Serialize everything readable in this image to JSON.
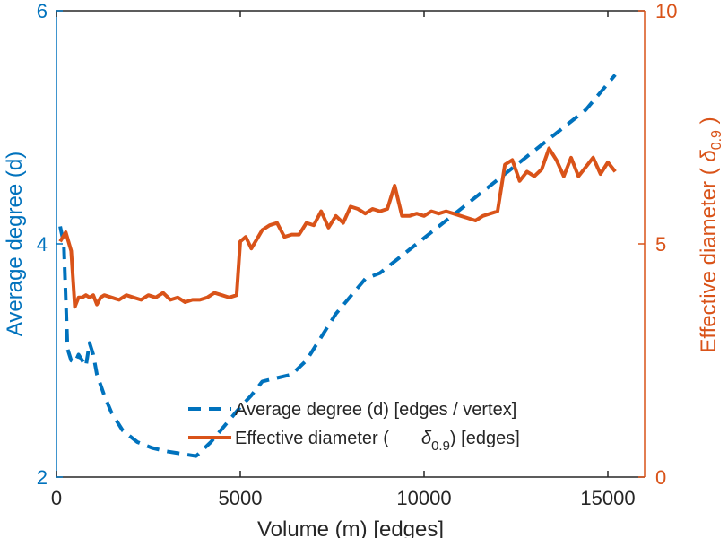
{
  "colors": {
    "left_axis": "#0072BD",
    "right_axis": "#D95319",
    "degree_series": "#0072BD",
    "diameter_series": "#D95319",
    "frame": "#262626"
  },
  "chart_data": {
    "type": "line",
    "title": "",
    "xlabel": "Volume (m) [edges]",
    "ylabel_left": "Average degree (d)",
    "ylabel_right_prefix": "Effective diameter (",
    "ylabel_right_symbol": "δ",
    "ylabel_right_subscript": "0.9",
    "ylabel_right_suffix": ")",
    "xlim": [
      0,
      16000
    ],
    "ylim_left": [
      2,
      6
    ],
    "ylim_right": [
      0,
      10
    ],
    "x_ticks": [
      0,
      5000,
      10000,
      15000
    ],
    "x_tick_labels": [
      "0",
      "5000",
      "10000",
      "15000"
    ],
    "y_left_ticks": [
      2,
      4,
      6
    ],
    "y_left_tick_labels": [
      "2",
      "4",
      "6"
    ],
    "y_right_ticks": [
      0,
      5,
      10
    ],
    "y_right_tick_labels": [
      "0",
      "5",
      "10"
    ],
    "legend": {
      "position": "bottom-center",
      "entries": [
        {
          "label": "Average degree (d) [edges / vertex]",
          "style": "dashed",
          "series": "degree"
        },
        {
          "label_prefix": "Effective diameter (",
          "label_symbol": "δ",
          "label_subscript": "0.9",
          "label_suffix": ") [edges]",
          "style": "solid",
          "series": "diameter"
        }
      ]
    },
    "series": [
      {
        "name": "Average degree (d) [edges / vertex]",
        "axis": "left",
        "style": "dashed",
        "x": [
          100,
          200,
          300,
          400,
          500,
          600,
          700,
          800,
          900,
          1000,
          1100,
          1300,
          1500,
          1800,
          2200,
          2600,
          3000,
          3400,
          3800,
          4200,
          4600,
          5000,
          5300,
          5600,
          6000,
          6400,
          6800,
          7200,
          7600,
          8000,
          8400,
          8800,
          9200,
          9600,
          10000,
          10400,
          10800,
          11200,
          11600,
          12000,
          12400,
          12800,
          13200,
          13600,
          14000,
          14400,
          14800,
          15200
        ],
        "y": [
          4.15,
          4.0,
          3.1,
          3.0,
          2.98,
          3.05,
          3.0,
          2.95,
          3.15,
          3.05,
          2.88,
          2.7,
          2.55,
          2.4,
          2.3,
          2.25,
          2.22,
          2.2,
          2.18,
          2.3,
          2.45,
          2.6,
          2.7,
          2.82,
          2.85,
          2.88,
          3.0,
          3.2,
          3.4,
          3.55,
          3.7,
          3.75,
          3.85,
          3.95,
          4.05,
          4.15,
          4.25,
          4.35,
          4.45,
          4.55,
          4.65,
          4.75,
          4.85,
          4.95,
          5.05,
          5.15,
          5.3,
          5.45
        ]
      },
      {
        "name": "Effective diameter (δ0.9) [edges]",
        "axis": "right",
        "style": "solid",
        "x": [
          100,
          250,
          400,
          500,
          600,
          700,
          800,
          900,
          1000,
          1100,
          1200,
          1300,
          1500,
          1700,
          1900,
          2100,
          2300,
          2500,
          2700,
          2900,
          3100,
          3300,
          3500,
          3700,
          3900,
          4100,
          4300,
          4500,
          4700,
          4900,
          5000,
          5150,
          5300,
          5450,
          5600,
          5800,
          6000,
          6200,
          6400,
          6600,
          6800,
          7000,
          7200,
          7400,
          7600,
          7800,
          8000,
          8200,
          8400,
          8600,
          8800,
          9000,
          9200,
          9400,
          9600,
          9800,
          10000,
          10200,
          10400,
          10600,
          10800,
          11000,
          11200,
          11400,
          11600,
          11800,
          12000,
          12200,
          12400,
          12600,
          12800,
          13000,
          13200,
          13400,
          13600,
          13800,
          14000,
          14200,
          14400,
          14600,
          14800,
          15000,
          15200
        ],
        "y": [
          5.05,
          5.25,
          4.85,
          3.65,
          3.85,
          3.85,
          3.9,
          3.85,
          3.9,
          3.7,
          3.85,
          3.9,
          3.85,
          3.8,
          3.9,
          3.85,
          3.8,
          3.9,
          3.85,
          3.95,
          3.8,
          3.85,
          3.75,
          3.8,
          3.8,
          3.85,
          3.95,
          3.9,
          3.85,
          3.9,
          5.05,
          5.15,
          4.9,
          5.1,
          5.3,
          5.4,
          5.45,
          5.15,
          5.2,
          5.2,
          5.45,
          5.4,
          5.7,
          5.35,
          5.6,
          5.45,
          5.8,
          5.75,
          5.65,
          5.75,
          5.7,
          5.75,
          6.25,
          5.6,
          5.6,
          5.65,
          5.6,
          5.7,
          5.65,
          5.7,
          5.65,
          5.6,
          5.55,
          5.5,
          5.6,
          5.65,
          5.7,
          6.7,
          6.8,
          6.35,
          6.55,
          6.45,
          6.6,
          7.05,
          6.8,
          6.45,
          6.85,
          6.45,
          6.65,
          6.85,
          6.5,
          6.75,
          6.55
        ]
      }
    ]
  }
}
